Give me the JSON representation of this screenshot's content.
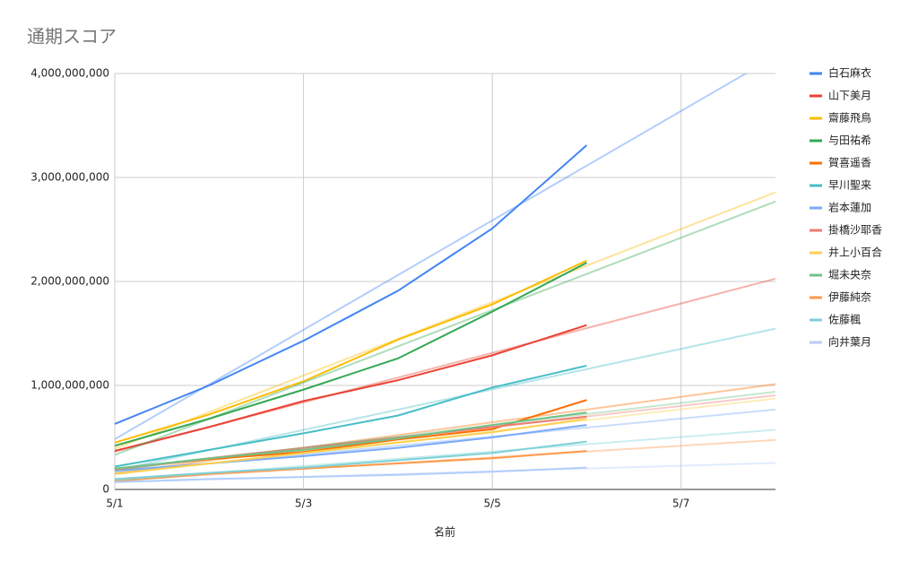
{
  "chart_data": {
    "type": "line",
    "title": "通期スコア",
    "x_label": "名前",
    "x": [
      1,
      2,
      3,
      4,
      5,
      6
    ],
    "xlim": [
      1,
      8
    ],
    "xticks": [
      {
        "value": 1,
        "label": "5/1"
      },
      {
        "value": 3,
        "label": "5/3"
      },
      {
        "value": 5,
        "label": "5/5"
      },
      {
        "value": 7,
        "label": "5/7"
      }
    ],
    "ylim": [
      0,
      4000000000
    ],
    "yticks": [
      0,
      {
        "value": 1000000000,
        "label": "1,000,000,000"
      },
      {
        "value": 2000000000,
        "label": "2,000,000,000"
      },
      {
        "value": 3000000000,
        "label": "3,000,000,000"
      },
      {
        "value": 4000000000,
        "label": "4,000,000,000"
      }
    ],
    "grid": true,
    "trendline": true,
    "legend": "right",
    "series": [
      {
        "name": "白石麻衣",
        "color": "#4285f4",
        "values": [
          630000000,
          1000000000,
          1430000000,
          1910000000,
          2510000000,
          3310000000
        ]
      },
      {
        "name": "山下美月",
        "color": "#ea4335",
        "values": [
          370000000,
          600000000,
          850000000,
          1050000000,
          1290000000,
          1580000000
        ]
      },
      {
        "name": "齋藤飛鳥",
        "color": "#fbbc04",
        "values": [
          450000000,
          720000000,
          1040000000,
          1440000000,
          1780000000,
          2200000000
        ]
      },
      {
        "name": "与田祐希",
        "color": "#34a853",
        "values": [
          420000000,
          680000000,
          960000000,
          1260000000,
          1710000000,
          2180000000
        ]
      },
      {
        "name": "賀喜遥香",
        "color": "#ff6d01",
        "values": [
          200000000,
          290000000,
          360000000,
          480000000,
          580000000,
          860000000
        ]
      },
      {
        "name": "早川聖来",
        "color": "#46bdc6",
        "values": [
          220000000,
          380000000,
          540000000,
          710000000,
          980000000,
          1190000000
        ]
      },
      {
        "name": "岩本蓮加",
        "color": "#7baaf7",
        "values": [
          180000000,
          250000000,
          320000000,
          400000000,
          500000000,
          620000000
        ]
      },
      {
        "name": "掛橋沙耶香",
        "color": "#f07b72",
        "values": [
          190000000,
          300000000,
          400000000,
          500000000,
          600000000,
          700000000
        ]
      },
      {
        "name": "井上小百合",
        "color": "#fcd04f",
        "values": [
          150000000,
          250000000,
          350000000,
          450000000,
          550000000,
          680000000
        ]
      },
      {
        "name": "堀未央奈",
        "color": "#71c287",
        "values": [
          200000000,
          300000000,
          380000000,
          490000000,
          620000000,
          740000000
        ]
      },
      {
        "name": "伊藤純奈",
        "color": "#ff994d",
        "values": [
          80000000,
          150000000,
          200000000,
          250000000,
          300000000,
          370000000
        ]
      },
      {
        "name": "佐藤楓",
        "color": "#7ed1d7",
        "values": [
          100000000,
          160000000,
          210000000,
          280000000,
          350000000,
          460000000
        ]
      },
      {
        "name": "向井葉月",
        "color": "#b3cefb",
        "values": [
          70000000,
          100000000,
          120000000,
          140000000,
          170000000,
          210000000
        ]
      }
    ]
  }
}
